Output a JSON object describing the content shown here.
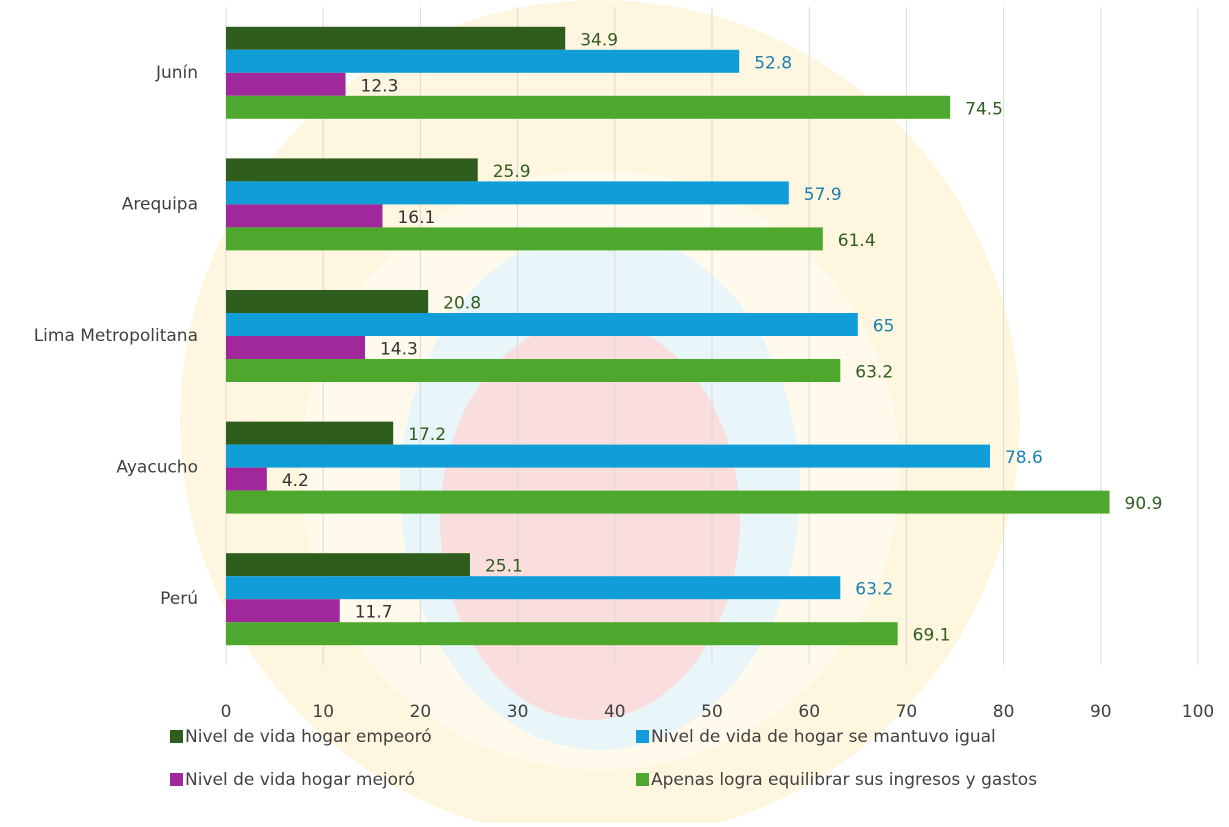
{
  "chart_data": {
    "type": "hbar",
    "categories": [
      "Junín",
      "Arequipa",
      "Lima Metropolitana",
      "Ayacucho",
      "Perú"
    ],
    "series": [
      {
        "name": "Nivel de vida hogar empeoró",
        "color": "#2e5d1e",
        "values": [
          34.9,
          25.9,
          20.8,
          17.2,
          25.1
        ]
      },
      {
        "name": "Nivel de vida de hogar se mantuvo igual",
        "color": "#119ed8",
        "values": [
          52.8,
          57.9,
          65,
          78.6,
          63.2
        ]
      },
      {
        "name": "Nivel de vida hogar mejoró",
        "color": "#a0289a",
        "values": [
          12.3,
          16.1,
          14.3,
          4.2,
          11.7
        ]
      },
      {
        "name": "Apenas logra equilibrar sus ingresos y gastos",
        "color": "#4fa82e",
        "values": [
          74.5,
          61.4,
          63.2,
          90.9,
          69.1
        ]
      }
    ],
    "xlim": [
      0,
      100
    ],
    "xticks": [
      0,
      10,
      20,
      30,
      40,
      50,
      60,
      70,
      80,
      90,
      100
    ],
    "grid": true
  }
}
